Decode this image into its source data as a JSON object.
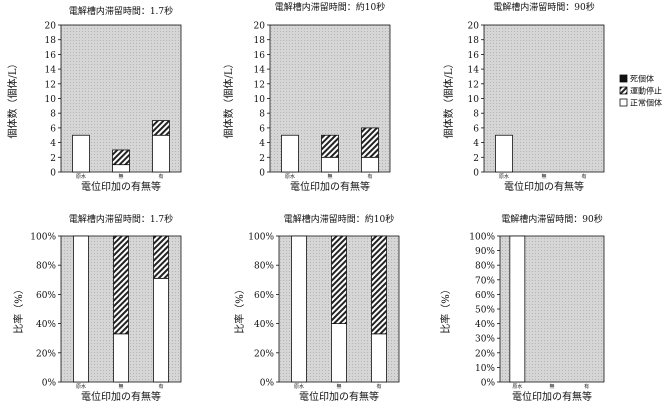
{
  "legend": {
    "placement": "right-of-top-row",
    "items": [
      {
        "label": "死個体",
        "pattern": "solid-black"
      },
      {
        "label": "運動停止",
        "pattern": "hatched"
      },
      {
        "label": "正常個体",
        "pattern": "white"
      }
    ]
  },
  "colors": {
    "plot_background": "#d6d6d6",
    "dead": "#111111",
    "stopped_hatch": "#222222",
    "normal": "#ffffff",
    "outline": "#111111"
  },
  "chart_data": [
    {
      "type": "bar",
      "stacked": true,
      "title": "電解槽内滞留時間：1.7秒",
      "xlabel": "電位印加の有無等",
      "ylabel": "個体数（個体/L）",
      "categories": [
        "原水",
        "無",
        "有"
      ],
      "ylim": [
        0,
        20
      ],
      "yticks": [
        0,
        2,
        4,
        6,
        8,
        10,
        12,
        14,
        16,
        18,
        20
      ],
      "ytick_suffix": "",
      "series": [
        {
          "name": "正常個体",
          "values": [
            5,
            1,
            5
          ]
        },
        {
          "name": "運動停止",
          "values": [
            0,
            2,
            2
          ]
        },
        {
          "name": "死個体",
          "values": [
            0,
            0,
            0
          ]
        }
      ]
    },
    {
      "type": "bar",
      "stacked": true,
      "title": "電解槽内滞留時間：約10秒",
      "xlabel": "電位印加の有無等",
      "ylabel": "個体数（個体/L）",
      "categories": [
        "原水",
        "無",
        "有"
      ],
      "ylim": [
        0,
        20
      ],
      "yticks": [
        0,
        2,
        4,
        6,
        8,
        10,
        12,
        14,
        16,
        18,
        20
      ],
      "ytick_suffix": "",
      "series": [
        {
          "name": "正常個体",
          "values": [
            5,
            2,
            2
          ]
        },
        {
          "name": "運動停止",
          "values": [
            0,
            3,
            4
          ]
        },
        {
          "name": "死個体",
          "values": [
            0,
            0,
            0
          ]
        }
      ]
    },
    {
      "type": "bar",
      "stacked": true,
      "title": "電解槽内滞留時間：90秒",
      "xlabel": "電位印加の有無等",
      "ylabel": "個体数（個体/L）",
      "categories": [
        "原水",
        "無",
        "有"
      ],
      "ylim": [
        0,
        20
      ],
      "yticks": [
        0,
        2,
        4,
        6,
        8,
        10,
        12,
        14,
        16,
        18,
        20
      ],
      "ytick_suffix": "",
      "series": [
        {
          "name": "正常個体",
          "values": [
            5,
            0,
            0
          ]
        },
        {
          "name": "運動停止",
          "values": [
            0,
            0,
            0
          ]
        },
        {
          "name": "死個体",
          "values": [
            0,
            0,
            0
          ]
        }
      ]
    },
    {
      "type": "bar",
      "stacked": true,
      "title": "電解槽内滞留時間：1.7秒",
      "xlabel": "電位印加の有無等",
      "ylabel": "比率（%）",
      "categories": [
        "原水",
        "無",
        "有"
      ],
      "ylim": [
        0,
        100
      ],
      "yticks": [
        0,
        20,
        40,
        60,
        80,
        100
      ],
      "ytick_suffix": "%",
      "series": [
        {
          "name": "正常個体",
          "values": [
            100,
            33,
            71
          ]
        },
        {
          "name": "運動停止",
          "values": [
            0,
            67,
            29
          ]
        },
        {
          "name": "死個体",
          "values": [
            0,
            0,
            0
          ]
        }
      ]
    },
    {
      "type": "bar",
      "stacked": true,
      "title": "電解槽内滞留時間：約10秒",
      "xlabel": "電位印加の有無等",
      "ylabel": "比率（%）",
      "categories": [
        "原水",
        "無",
        "有"
      ],
      "ylim": [
        0,
        100
      ],
      "yticks": [
        0,
        20,
        40,
        60,
        80,
        100
      ],
      "ytick_suffix": "%",
      "series": [
        {
          "name": "正常個体",
          "values": [
            100,
            40,
            33
          ]
        },
        {
          "name": "運動停止",
          "values": [
            0,
            60,
            67
          ]
        },
        {
          "name": "死個体",
          "values": [
            0,
            0,
            0
          ]
        }
      ]
    },
    {
      "type": "bar",
      "stacked": true,
      "title": "電解槽内滞留時間：90秒",
      "xlabel": "電位印加の有無等",
      "ylabel": "比率（%）",
      "categories": [
        "原水",
        "無",
        "有"
      ],
      "ylim": [
        0,
        100
      ],
      "yticks": [
        0,
        10,
        20,
        30,
        40,
        50,
        60,
        70,
        80,
        90,
        100
      ],
      "ytick_suffix": "%",
      "series": [
        {
          "name": "正常個体",
          "values": [
            100,
            0,
            0
          ]
        },
        {
          "name": "運動停止",
          "values": [
            0,
            0,
            0
          ]
        },
        {
          "name": "死個体",
          "values": [
            0,
            0,
            0
          ]
        }
      ]
    }
  ]
}
